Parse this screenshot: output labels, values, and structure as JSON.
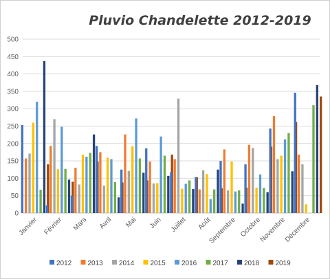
{
  "chart_data": {
    "type": "bar",
    "title": "Pluvio Chandelette 2012-2019",
    "xlabel": "",
    "ylabel": "",
    "ylim": [
      0,
      500
    ],
    "y_ticks": [
      0,
      50,
      100,
      150,
      200,
      250,
      300,
      350,
      400,
      450,
      500
    ],
    "grid": true,
    "legend_position": "bottom",
    "categories": [
      "Janvier",
      "Février",
      "Mars",
      "Avril",
      "Mai",
      "Juin",
      "Juillet",
      "Août",
      "Septembre",
      "Octobre",
      "Novembre",
      "Décembre"
    ],
    "series": [
      {
        "name": "2012",
        "color": "#4472C4",
        "values": [
          253,
          22,
          50,
          193,
          125,
          186,
          117,
          103,
          150,
          140,
          243,
          346
        ]
      },
      {
        "name": "2013",
        "color": "#ED7D31",
        "values": [
          157,
          193,
          130,
          175,
          226,
          148,
          155,
          68,
          183,
          196,
          279,
          168
        ]
      },
      {
        "name": "2014",
        "color": "#A5A5A5",
        "values": [
          171,
          270,
          82,
          79,
          121,
          85,
          329,
          123,
          65,
          187,
          155,
          140
        ]
      },
      {
        "name": "2015",
        "color": "#FFC000",
        "values": [
          260,
          126,
          168,
          159,
          192,
          86,
          70,
          112,
          148,
          73,
          165,
          25
        ]
      },
      {
        "name": "2016",
        "color": "#5B9BD5",
        "values": [
          320,
          248,
          162,
          155,
          272,
          220,
          84,
          40,
          62,
          111,
          212,
          0
        ]
      },
      {
        "name": "2017",
        "color": "#70AD47",
        "values": [
          67,
          127,
          173,
          89,
          157,
          165,
          94,
          68,
          65,
          72,
          230,
          310
        ]
      },
      {
        "name": "2018",
        "color": "#264478",
        "values": [
          437,
          96,
          226,
          45,
          116,
          107,
          69,
          125,
          27,
          60,
          120,
          368
        ]
      },
      {
        "name": "2019",
        "color": "#9E480E",
        "values": [
          140,
          90,
          148,
          88,
          94,
          168,
          103,
          71,
          73,
          191,
          262,
          335
        ]
      }
    ]
  }
}
